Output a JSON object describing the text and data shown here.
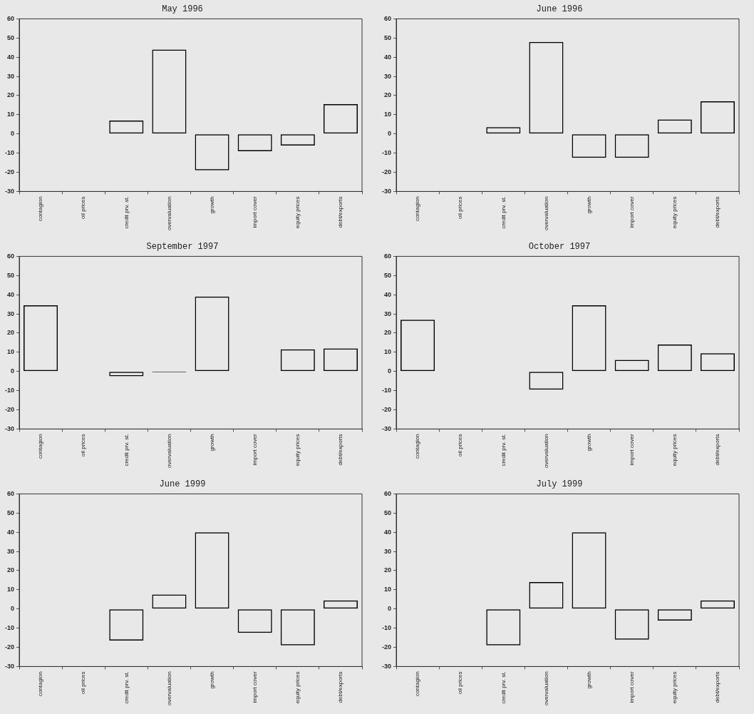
{
  "chart_data": [
    {
      "type": "bar",
      "title": "May 1996",
      "categories": [
        "contagion",
        "oil prices",
        "credit prv. st.",
        "overvaluation",
        "growth",
        "import cover",
        "equity prices",
        "debt/exports"
      ],
      "values": [
        0,
        0,
        7,
        44,
        -19,
        -9,
        -6,
        15.5
      ],
      "color": "#000000",
      "ylim": [
        -30,
        60
      ],
      "yticks": [
        -30,
        -20,
        -10,
        0,
        10,
        20,
        30,
        40,
        50,
        60
      ]
    },
    {
      "type": "bar",
      "title": "June 1996",
      "categories": [
        "contagion",
        "oil prices",
        "credit prv. st.",
        "overvaluation",
        "growth",
        "import cover",
        "equity prices",
        "debt/exports"
      ],
      "values": [
        0,
        0,
        3.5,
        48,
        -12.5,
        -12.5,
        7.5,
        17
      ],
      "color": "#000000",
      "ylim": [
        -30,
        60
      ],
      "yticks": [
        -30,
        -20,
        -10,
        0,
        10,
        20,
        30,
        40,
        50,
        60
      ]
    },
    {
      "type": "bar",
      "title": "September 1997",
      "categories": [
        "contagion",
        "oil prices",
        "credit prv. st.",
        "overvaluation",
        "growth",
        "import cover",
        "equity prices",
        "debt/exports"
      ],
      "values": [
        34.5,
        0,
        -2.5,
        -0.5,
        39,
        0,
        11.5,
        12
      ],
      "color": "#000000",
      "ylim": [
        -30,
        60
      ],
      "yticks": [
        -30,
        -20,
        -10,
        0,
        10,
        20,
        30,
        40,
        50,
        60
      ]
    },
    {
      "type": "bar",
      "title": "October 1997",
      "categories": [
        "contagion",
        "oil prices",
        "credit prv. st.",
        "overvaluation",
        "growth",
        "import cover",
        "equity prices",
        "debt/exports"
      ],
      "values": [
        27,
        0,
        0,
        -9.5,
        34.5,
        6,
        14,
        9.5
      ],
      "color": "#000000",
      "ylim": [
        -30,
        60
      ],
      "yticks": [
        -30,
        -20,
        -10,
        0,
        10,
        20,
        30,
        40,
        50,
        60
      ]
    },
    {
      "type": "bar",
      "title": "June 1999",
      "categories": [
        "contagion",
        "oil prices",
        "credit prv. st.",
        "overvaluation",
        "growth",
        "import cover",
        "equity prices",
        "debt/exports"
      ],
      "values": [
        0,
        0,
        -16.5,
        7.5,
        40,
        -12.5,
        -19,
        4.5
      ],
      "color": "#000000",
      "ylim": [
        -30,
        60
      ],
      "yticks": [
        -30,
        -20,
        -10,
        0,
        10,
        20,
        30,
        40,
        50,
        60
      ]
    },
    {
      "type": "bar",
      "title": "July 1999",
      "categories": [
        "contagion",
        "oil prices",
        "credit prv. st.",
        "overvaluation",
        "growth",
        "import cover",
        "equity prices",
        "debt/exports"
      ],
      "values": [
        0,
        0,
        -19,
        14,
        40,
        -16,
        -6,
        4.5
      ],
      "color": "#000000",
      "ylim": [
        -30,
        60
      ],
      "yticks": [
        -30,
        -20,
        -10,
        0,
        10,
        20,
        30,
        40,
        50,
        60
      ]
    }
  ]
}
